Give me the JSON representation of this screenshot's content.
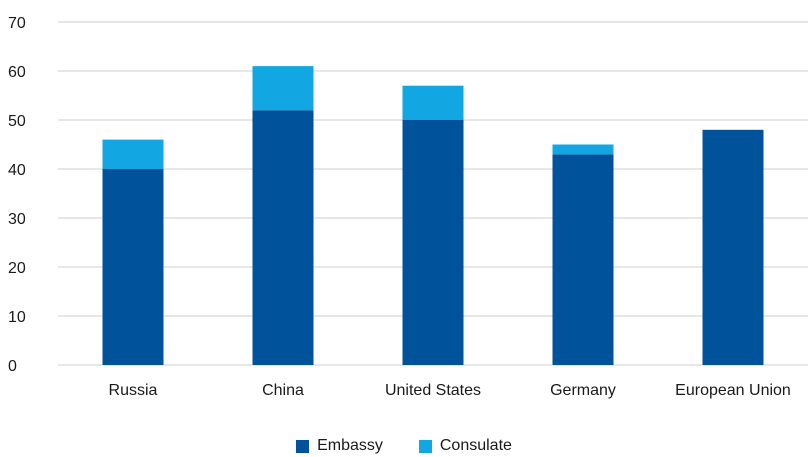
{
  "chart_data": {
    "type": "bar",
    "stacked": true,
    "categories": [
      "Russia",
      "China",
      "United States",
      "Germany",
      "European Union"
    ],
    "series": [
      {
        "name": "Embassy",
        "values": [
          40,
          52,
          50,
          43,
          48
        ],
        "color": "#00529b"
      },
      {
        "name": "Consulate",
        "values": [
          6,
          9,
          7,
          2,
          0
        ],
        "color": "#12a7e2"
      }
    ],
    "ylim": [
      0,
      70
    ],
    "yticks": [
      0,
      10,
      20,
      30,
      40,
      50,
      60,
      70
    ],
    "grid": true,
    "legend_position": "bottom-center"
  },
  "colors": {
    "grid": "#cfcfcf",
    "text": "#1a1a1a"
  }
}
